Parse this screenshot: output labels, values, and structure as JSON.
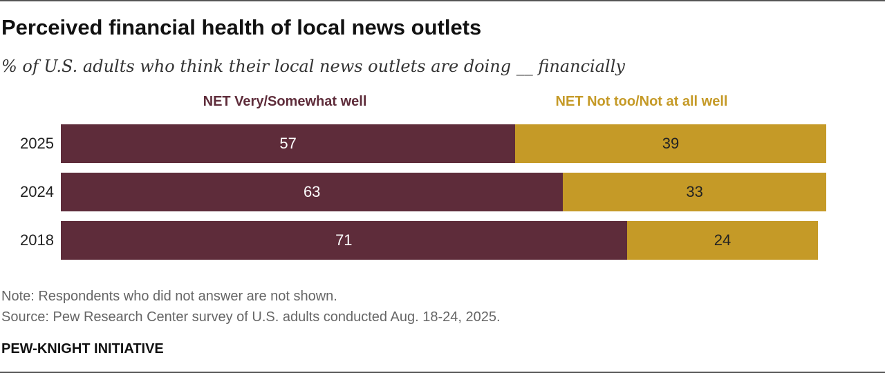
{
  "header": {
    "title": "Perceived financial health of local news outlets",
    "subtitle": "% of U.S. adults who think their local news outlets are doing __ financially"
  },
  "colors": {
    "well": "#5E2C3A",
    "not_well": "#C59A27",
    "well_value_text": "#FFFFFF",
    "not_well_value_text": "#222222"
  },
  "chart_data": {
    "type": "bar",
    "orientation": "horizontal",
    "stacked": true,
    "categories": [
      "2025",
      "2024",
      "2018"
    ],
    "series": [
      {
        "name": "NET Very/Somewhat well",
        "values": [
          57,
          63,
          71
        ]
      },
      {
        "name": "NET Not too/Not at all well",
        "values": [
          39,
          33,
          24
        ]
      }
    ],
    "xlim": [
      0,
      100
    ],
    "title": "Perceived financial health of local news outlets",
    "subtitle": "% of U.S. adults who think their local news outlets are doing __ financially",
    "legend_position": "top"
  },
  "footer": {
    "note": "Note: Respondents who did not answer are not shown.",
    "source": "Source: Pew Research Center survey of U.S. adults conducted Aug. 18-24, 2025.",
    "brand": "PEW-KNIGHT INITIATIVE"
  }
}
